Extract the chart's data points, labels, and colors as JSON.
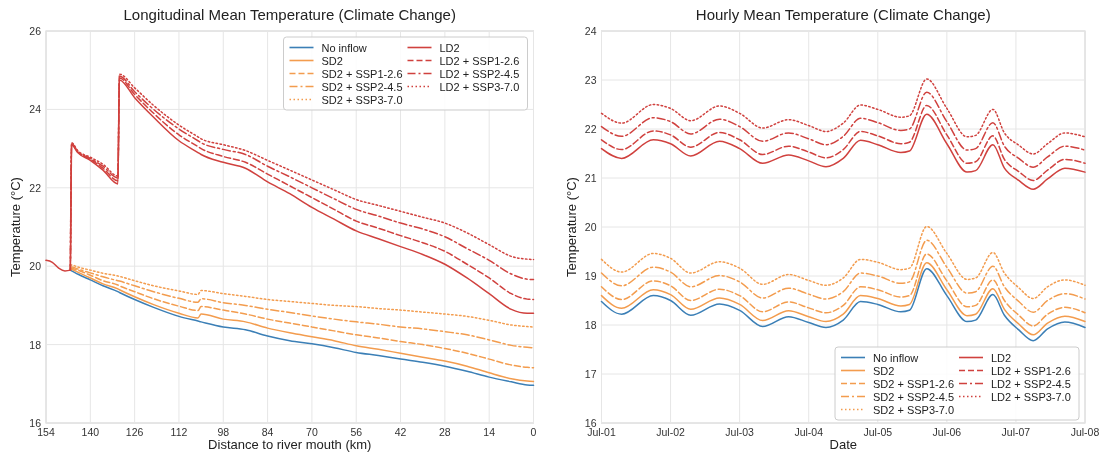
{
  "chart_data": [
    {
      "type": "line",
      "title": "Longitudinal Mean Temperature (Climate Change)",
      "xlabel": "Distance to river mouth (km)",
      "ylabel": "Temperature (°C)",
      "xlim": [
        154,
        0
      ],
      "xticks": [
        154,
        140,
        126,
        112,
        98,
        84,
        70,
        56,
        42,
        28,
        14,
        0
      ],
      "ylim": [
        16,
        26
      ],
      "yticks": [
        16,
        18,
        20,
        22,
        24,
        26
      ],
      "grid": true,
      "legend": "top right",
      "x": [
        154,
        152,
        150,
        148,
        146.3,
        145.9,
        144,
        140,
        136,
        131.3,
        130.8,
        126,
        120,
        112,
        106,
        105,
        98,
        91,
        84,
        77,
        70,
        63,
        56,
        49,
        42,
        35,
        28,
        21,
        14,
        7,
        2,
        0
      ],
      "series": [
        {
          "name": "No inflow",
          "color": "#3b7fb6",
          "line_style": "solid",
          "values": [
            null,
            null,
            null,
            null,
            19.9,
            19.88,
            19.8,
            19.65,
            19.5,
            19.35,
            19.33,
            19.15,
            18.95,
            18.72,
            18.6,
            18.58,
            18.45,
            18.38,
            18.22,
            18.1,
            18.02,
            17.92,
            17.8,
            17.72,
            17.63,
            17.55,
            17.45,
            17.32,
            17.17,
            17.05,
            16.97,
            16.96
          ]
        },
        {
          "name": "SD2",
          "color": "#f39c4e",
          "line_style": "solid",
          "values": [
            null,
            null,
            null,
            null,
            19.93,
            19.92,
            19.85,
            19.7,
            19.55,
            19.42,
            19.4,
            19.22,
            19.02,
            18.8,
            18.68,
            18.78,
            18.65,
            18.58,
            18.42,
            18.3,
            18.2,
            18.1,
            17.97,
            17.88,
            17.78,
            17.68,
            17.58,
            17.45,
            17.28,
            17.13,
            17.07,
            17.06
          ]
        },
        {
          "name": "SD2 + SSP1-2.6",
          "color": "#f39c4e",
          "line_style": "dashed",
          "values": [
            null,
            null,
            null,
            null,
            19.96,
            19.95,
            19.9,
            19.77,
            19.63,
            19.52,
            19.5,
            19.35,
            19.17,
            18.98,
            18.87,
            18.97,
            18.88,
            18.78,
            18.65,
            18.55,
            18.45,
            18.35,
            18.25,
            18.17,
            18.08,
            18.0,
            17.9,
            17.78,
            17.63,
            17.48,
            17.42,
            17.41
          ]
        },
        {
          "name": "SD2 + SSP2-4.5",
          "color": "#f39c4e",
          "line_style": "dashdot",
          "values": [
            null,
            null,
            null,
            null,
            19.98,
            19.98,
            19.93,
            19.83,
            19.73,
            19.63,
            19.62,
            19.5,
            19.35,
            19.18,
            19.08,
            19.17,
            19.07,
            19.0,
            18.9,
            18.82,
            18.73,
            18.65,
            18.58,
            18.52,
            18.45,
            18.4,
            18.33,
            18.25,
            18.12,
            17.98,
            17.93,
            17.92
          ]
        },
        {
          "name": "SD2 + SSP3-7.0",
          "color": "#f39c4e",
          "line_style": "dotted",
          "values": [
            null,
            null,
            null,
            null,
            20.02,
            20.03,
            19.98,
            19.9,
            19.82,
            19.75,
            19.74,
            19.63,
            19.5,
            19.37,
            19.28,
            19.38,
            19.3,
            19.23,
            19.15,
            19.1,
            19.05,
            19.0,
            18.97,
            18.92,
            18.88,
            18.83,
            18.78,
            18.72,
            18.62,
            18.5,
            18.46,
            18.45
          ]
        },
        {
          "name": "LD2",
          "color": "#d0413e",
          "line_style": "solid",
          "values": [
            20.15,
            20.1,
            19.95,
            19.88,
            19.9,
            23.1,
            22.9,
            22.7,
            22.45,
            22.1,
            24.75,
            24.3,
            23.8,
            23.2,
            22.9,
            22.85,
            22.65,
            22.5,
            22.15,
            21.85,
            21.5,
            21.2,
            20.9,
            20.7,
            20.5,
            20.3,
            20.05,
            19.7,
            19.3,
            18.9,
            18.8,
            18.8
          ]
        },
        {
          "name": "LD2 + SSP1-2.6",
          "color": "#d0413e",
          "line_style": "dashed",
          "values": [
            null,
            null,
            null,
            null,
            19.9,
            23.12,
            22.92,
            22.73,
            22.5,
            22.18,
            24.8,
            24.38,
            23.9,
            23.35,
            23.05,
            23.0,
            22.8,
            22.65,
            22.35,
            22.05,
            21.75,
            21.45,
            21.15,
            20.97,
            20.78,
            20.6,
            20.38,
            20.05,
            19.7,
            19.3,
            19.16,
            19.15
          ]
        },
        {
          "name": "LD2 + SSP2-4.5",
          "color": "#d0413e",
          "line_style": "dashdot",
          "values": [
            null,
            null,
            null,
            null,
            19.9,
            23.13,
            22.93,
            22.75,
            22.55,
            22.25,
            24.85,
            24.45,
            24.0,
            23.5,
            23.2,
            23.15,
            22.98,
            22.85,
            22.55,
            22.28,
            22.0,
            21.72,
            21.45,
            21.28,
            21.1,
            20.95,
            20.75,
            20.45,
            20.15,
            19.8,
            19.67,
            19.66
          ]
        },
        {
          "name": "LD2 + SSP3-7.0",
          "color": "#d0413e",
          "line_style": "dotted",
          "values": [
            null,
            null,
            null,
            null,
            19.9,
            23.15,
            22.95,
            22.78,
            22.6,
            22.3,
            24.9,
            24.55,
            24.1,
            23.6,
            23.3,
            23.25,
            23.1,
            22.95,
            22.7,
            22.45,
            22.2,
            21.95,
            21.7,
            21.55,
            21.4,
            21.25,
            21.1,
            20.85,
            20.55,
            20.25,
            20.18,
            20.17
          ]
        }
      ]
    },
    {
      "type": "line",
      "title": "Hourly Mean Temperature (Climate Change)",
      "xlabel": "Date",
      "ylabel": "Temperature (°C)",
      "xlim": [
        "--07-01",
        "--07-08"
      ],
      "xticks": [
        {
          "value": "--07-01",
          "label": "Jul-01"
        },
        {
          "value": "--07-02",
          "label": "Jul-02"
        },
        {
          "value": "--07-03",
          "label": "Jul-03"
        },
        {
          "value": "--07-04",
          "label": "Jul-04"
        },
        {
          "value": "--07-05",
          "label": "Jul-05"
        },
        {
          "value": "--07-06",
          "label": "Jul-06"
        },
        {
          "value": "--07-07",
          "label": "Jul-07"
        },
        {
          "value": "--07-08",
          "label": "Jul-08"
        }
      ],
      "ylim": [
        16,
        24
      ],
      "yticks": [
        16,
        17,
        18,
        19,
        20,
        21,
        22,
        23,
        24
      ],
      "grid": true,
      "legend": "bottom right",
      "x": [
        "--07-01T00:00",
        "--07-01T07:00",
        "--07-01T18:00",
        "--07-02T00:00",
        "--07-02T07:00",
        "--07-02T17:00",
        "--07-03T00:00",
        "--07-03T08:00",
        "--07-03T17:00",
        "--07-04T00:00",
        "--07-04T06:00",
        "--07-04T12:00",
        "--07-04T18:00",
        "--07-05T00:00",
        "--07-05T08:00",
        "--07-05T11:00",
        "--07-05T17:00",
        "--07-06T00:00",
        "--07-06T07:00",
        "--07-06T10:00",
        "--07-06T16:00",
        "--07-06T20:00",
        "--07-07T01:00",
        "--07-07T06:00",
        "--07-07T11:00",
        "--07-07T17:00",
        "--07-08T00:00"
      ],
      "series": [
        {
          "name": "No inflow",
          "color": "#3b7fb6",
          "line_style": "solid",
          "values": [
            18.48,
            18.22,
            18.6,
            18.5,
            18.2,
            18.43,
            18.3,
            17.97,
            18.17,
            18.05,
            17.95,
            18.1,
            18.48,
            18.42,
            18.27,
            18.3,
            19.15,
            18.6,
            18.07,
            18.1,
            18.62,
            18.2,
            17.9,
            17.68,
            17.92,
            18.06,
            17.95
          ]
        },
        {
          "name": "SD2",
          "color": "#f39c4e",
          "line_style": "solid",
          "values": [
            18.6,
            18.34,
            18.72,
            18.62,
            18.32,
            18.55,
            18.42,
            18.09,
            18.29,
            18.17,
            18.07,
            18.22,
            18.6,
            18.54,
            18.39,
            18.42,
            19.27,
            18.72,
            18.19,
            18.22,
            18.74,
            18.32,
            18.02,
            17.8,
            18.04,
            18.18,
            18.07
          ]
        },
        {
          "name": "SD2 + SSP1-2.6",
          "color": "#f39c4e",
          "line_style": "dashed",
          "values": [
            18.78,
            18.52,
            18.9,
            18.8,
            18.5,
            18.73,
            18.6,
            18.27,
            18.47,
            18.35,
            18.25,
            18.4,
            18.78,
            18.72,
            18.57,
            18.6,
            19.45,
            18.9,
            18.37,
            18.4,
            18.92,
            18.5,
            18.2,
            17.98,
            18.22,
            18.36,
            18.25
          ]
        },
        {
          "name": "SD2 + SSP2-4.5",
          "color": "#f39c4e",
          "line_style": "dashdot",
          "values": [
            19.06,
            18.8,
            19.18,
            19.08,
            18.78,
            19.01,
            18.88,
            18.55,
            18.75,
            18.63,
            18.53,
            18.68,
            19.06,
            19.0,
            18.85,
            18.88,
            19.73,
            19.18,
            18.65,
            18.68,
            19.2,
            18.78,
            18.48,
            18.26,
            18.5,
            18.64,
            18.53
          ]
        },
        {
          "name": "SD2 + SSP3-7.0",
          "color": "#f39c4e",
          "line_style": "dotted",
          "values": [
            19.34,
            19.08,
            19.46,
            19.36,
            19.06,
            19.29,
            19.16,
            18.83,
            19.03,
            18.91,
            18.81,
            18.96,
            19.34,
            19.28,
            19.13,
            19.16,
            20.01,
            19.46,
            18.93,
            18.96,
            19.48,
            19.06,
            18.76,
            18.54,
            18.78,
            18.92,
            18.81
          ]
        },
        {
          "name": "LD2",
          "color": "#d0413e",
          "line_style": "solid",
          "values": [
            21.6,
            21.4,
            21.78,
            21.7,
            21.45,
            21.75,
            21.6,
            21.3,
            21.47,
            21.35,
            21.23,
            21.4,
            21.77,
            21.68,
            21.52,
            21.55,
            22.3,
            21.7,
            21.12,
            21.15,
            21.68,
            21.2,
            20.95,
            20.77,
            20.98,
            21.2,
            21.12
          ]
        },
        {
          "name": "LD2 + SSP1-2.6",
          "color": "#d0413e",
          "line_style": "dashed",
          "values": [
            21.78,
            21.58,
            21.96,
            21.88,
            21.63,
            21.93,
            21.78,
            21.48,
            21.65,
            21.53,
            21.41,
            21.58,
            21.95,
            21.86,
            21.7,
            21.73,
            22.48,
            21.88,
            21.3,
            21.33,
            21.86,
            21.38,
            21.13,
            20.95,
            21.16,
            21.38,
            21.3
          ]
        },
        {
          "name": "LD2 + SSP2-4.5",
          "color": "#d0413e",
          "line_style": "dashdot",
          "values": [
            22.05,
            21.85,
            22.23,
            22.15,
            21.9,
            22.2,
            22.05,
            21.75,
            21.92,
            21.8,
            21.68,
            21.85,
            22.22,
            22.13,
            21.97,
            22.0,
            22.75,
            22.15,
            21.57,
            21.6,
            22.13,
            21.65,
            21.4,
            21.22,
            21.43,
            21.65,
            21.57
          ]
        },
        {
          "name": "LD2 + SSP3-7.0",
          "color": "#d0413e",
          "line_style": "dotted",
          "values": [
            22.32,
            22.12,
            22.5,
            22.42,
            22.17,
            22.47,
            22.32,
            22.02,
            22.19,
            22.07,
            21.95,
            22.12,
            22.49,
            22.4,
            22.24,
            22.27,
            23.02,
            22.42,
            21.84,
            21.87,
            22.4,
            21.92,
            21.67,
            21.49,
            21.7,
            21.92,
            21.84
          ]
        }
      ]
    }
  ]
}
